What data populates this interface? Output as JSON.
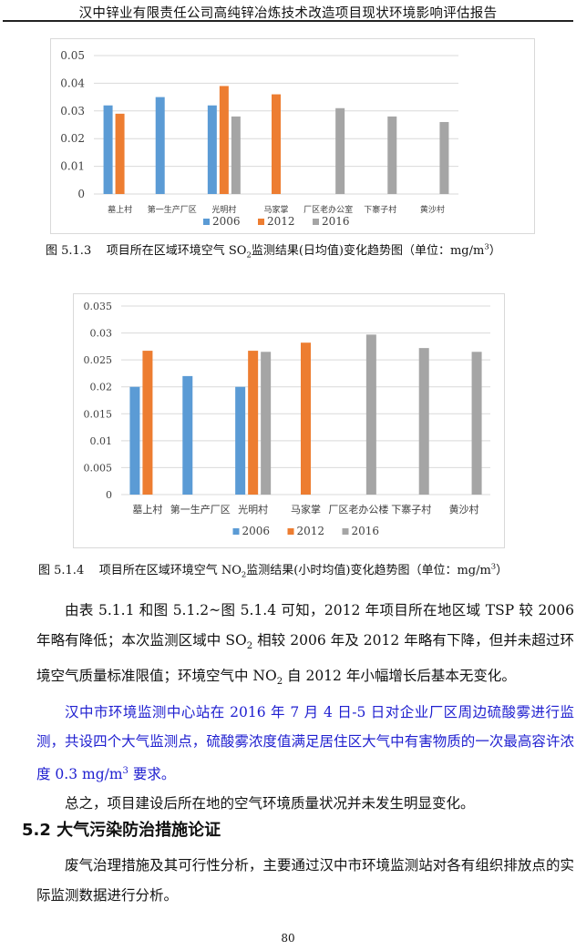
{
  "header": {
    "title": "汉中锌业有限责任公司高纯锌冶炼技术改造项目现状环境影响评估报告"
  },
  "chart_data": [
    {
      "type": "bar",
      "categories": [
        "墓上村",
        "第一生产厂区",
        "光明村",
        "马家掌",
        "厂区老办公室",
        "下寨子村",
        "黄沙村"
      ],
      "series": [
        {
          "name": "2006",
          "color": "#5b9bd5",
          "values": [
            0.032,
            0.035,
            0.032,
            null,
            null,
            null,
            null
          ]
        },
        {
          "name": "2012",
          "color": "#ed7d31",
          "values": [
            0.029,
            null,
            0.039,
            0.036,
            null,
            null,
            null
          ]
        },
        {
          "name": "2016",
          "color": "#a5a5a5",
          "values": [
            null,
            null,
            0.028,
            null,
            0.031,
            0.028,
            0.026
          ]
        }
      ],
      "ylim": [
        0,
        0.05
      ],
      "yticks": [
        "0",
        "0.01",
        "0.02",
        "0.03",
        "0.04",
        "0.05"
      ],
      "grid": true,
      "legend": "bottom",
      "caption": {
        "label": "图 5.1.3",
        "text": "项目所在区域环境空气 SO",
        "sub": "2",
        "text2": "监测结果(日均值)变化趋势图（单位：mg/m",
        "sup": "3",
        "end": "）"
      }
    },
    {
      "type": "bar",
      "categories": [
        "墓上村",
        "第一生产厂区",
        "光明村",
        "马家掌",
        "厂区老办公楼",
        "下寨子村",
        "黄沙村"
      ],
      "series": [
        {
          "name": "2006",
          "color": "#5b9bd5",
          "values": [
            0.02,
            0.022,
            0.02,
            null,
            null,
            null,
            null
          ]
        },
        {
          "name": "2012",
          "color": "#ed7d31",
          "values": [
            0.0267,
            null,
            0.0267,
            0.0282,
            null,
            null,
            null
          ]
        },
        {
          "name": "2016",
          "color": "#a5a5a5",
          "values": [
            null,
            null,
            0.0265,
            null,
            0.0297,
            0.0272,
            0.0265
          ]
        }
      ],
      "ylim": [
        0,
        0.035
      ],
      "yticks": [
        "0",
        "0.005",
        "0.01",
        "0.015",
        "0.02",
        "0.025",
        "0.03",
        "0.035"
      ],
      "grid": true,
      "legend": "bottom",
      "caption": {
        "label": "图 5.1.4",
        "text": "项目所在区域环境空气 NO",
        "sub": "2",
        "text2": "监测结果(小时均值)变化趋势图（单位：mg/m",
        "sup": "3",
        "end": "）"
      }
    }
  ],
  "body": {
    "p1a": "由表 5.1.1 和图 5.1.2~图 5.1.4 可知，2012 年项目所在地区域 TSP 较 2006 年略有降低；本次监测区域中 SO",
    "p1b": "2",
    "p1c": " 相较 2006 年及 2012 年略有下降，但并未超过环境空气质量标准限值；环境空气中 NO",
    "p1d": "2",
    "p1e": " 自 2012 年小幅增长后基本无变化。",
    "p2a": "汉中市环境监测中心站在 2016 年 7 月 4 日-5 日对企业厂区周边硫酸雾进行监测，共设四个大气监测点，硫酸雾浓度值满足居住区大气中有害物质的一次最高容许浓度 0.3 mg/m",
    "p2b": "3",
    "p2c": " 要求。",
    "p3": "总之，项目建设后所在地的空气环境质量状况并未发生明显变化。",
    "heading": "5.2  大气污染防治措施论证",
    "p4": "废气治理措施及其可行性分析，主要通过汉中市环境监测站对各有组织排放点的实际监测数据进行分析。"
  },
  "footer": {
    "page": "80"
  }
}
